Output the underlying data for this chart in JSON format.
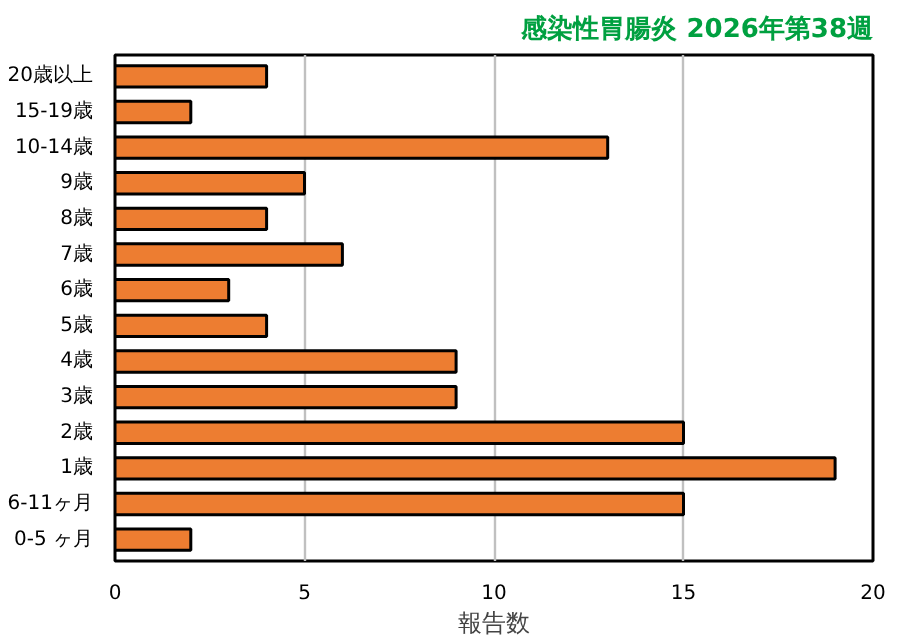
{
  "chart_data": {
    "type": "bar",
    "orientation": "horizontal",
    "title": "感染性胃腸炎 2026年第38週",
    "xlabel": "報告数",
    "categories": [
      "20歳以上",
      "15-19歳",
      "10-14歳",
      "9歳",
      "8歳",
      "7歳",
      "6歳",
      "5歳",
      "4歳",
      "3歳",
      "2歳",
      "1歳",
      "6-11ヶ月",
      "0-5 ヶ月"
    ],
    "values": [
      4,
      2,
      13,
      5,
      4,
      6,
      3,
      4,
      9,
      9,
      15,
      19,
      15,
      2
    ],
    "color": "#ed7d31",
    "xlim": [
      0,
      20
    ],
    "xticks": [
      0,
      5,
      10,
      15,
      20
    ],
    "grid": "x"
  }
}
